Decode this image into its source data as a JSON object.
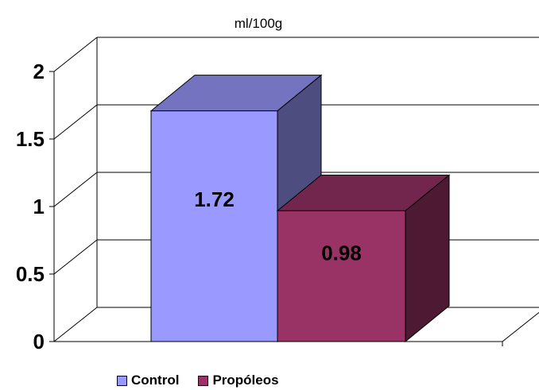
{
  "chart_data": {
    "type": "bar",
    "unit_label": "ml/100g",
    "categories": [
      "Control",
      "Propóleos"
    ],
    "values": [
      1.72,
      0.98
    ],
    "data_labels": [
      "1.72",
      "0.98"
    ],
    "ylim": [
      0,
      2
    ],
    "yticks": [
      "0",
      "0.5",
      "1",
      "1.5",
      "2"
    ],
    "grid": true,
    "legend_position": "bottom",
    "legend": [
      "Control",
      "Propóleos"
    ],
    "colors": {
      "control_front": "#9999FF",
      "control_top": "#7373C0",
      "control_side": "#4D4D80",
      "propoleos_front": "#993366",
      "propoleos_top": "#73264D",
      "propoleos_side": "#4D1933"
    }
  }
}
